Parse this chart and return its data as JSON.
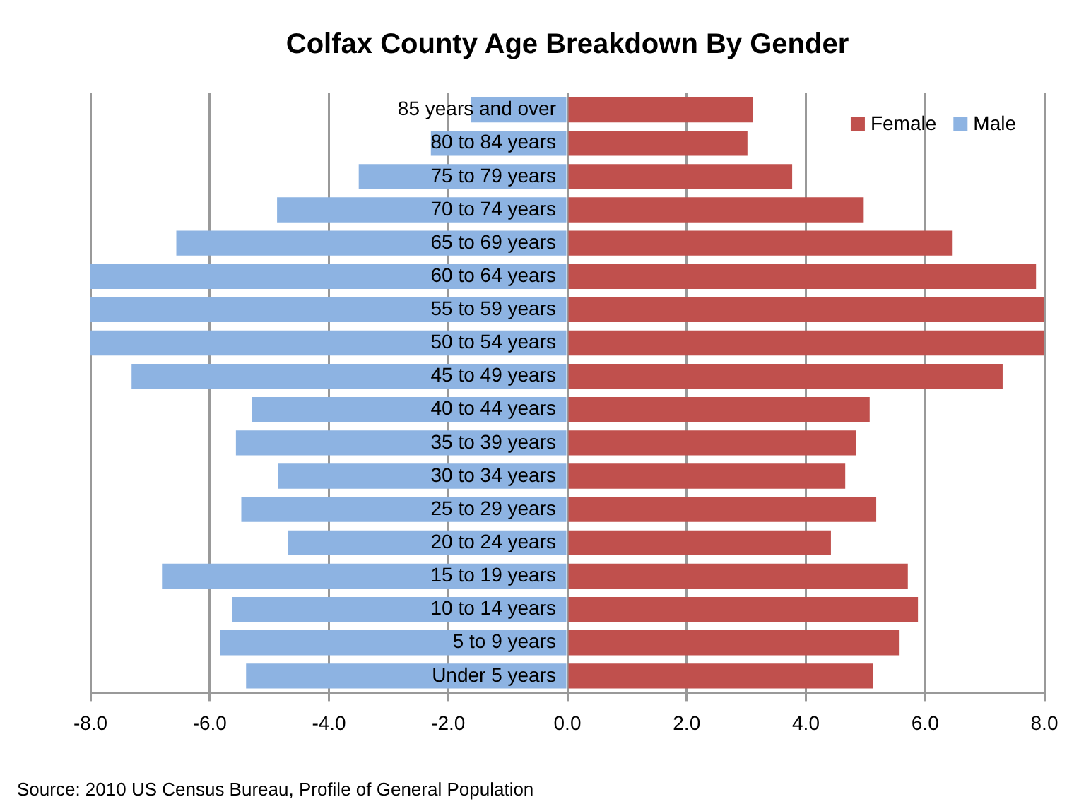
{
  "chart_data": {
    "type": "bar",
    "orientation": "horizontal",
    "stacked": true,
    "title": "Colfax County Age Breakdown By Gender",
    "categories": [
      "85 years and over",
      "80 to 84 years",
      "75 to 79 years",
      "70 to 74 years",
      "65 to 69 years",
      "60 to 64 years",
      "55 to 59 years",
      "50 to 54 years",
      "45 to 49 years",
      "40 to 44 years",
      "35 to 39 years",
      "30 to 34 years",
      "25 to 29 years",
      "20 to 24 years",
      "15 to 19 years",
      "10 to 14 years",
      "5 to 9 years",
      "Under 5 years"
    ],
    "series": [
      {
        "name": "Female",
        "color": "#c0504d",
        "values": [
          3.11,
          3.02,
          3.77,
          4.97,
          6.45,
          7.86,
          8.0,
          8.0,
          7.3,
          5.07,
          4.84,
          4.66,
          5.18,
          4.42,
          5.71,
          5.88,
          5.56,
          5.13
        ]
      },
      {
        "name": "Male",
        "color": "#8db3e2",
        "values": [
          -1.62,
          -2.29,
          -3.5,
          -4.87,
          -6.56,
          -8.0,
          -8.0,
          -8.0,
          -7.31,
          -5.29,
          -5.56,
          -4.85,
          -5.47,
          -4.69,
          -6.8,
          -5.62,
          -5.83,
          -5.39
        ]
      }
    ],
    "xlim": [
      -8,
      8
    ],
    "xticks": [
      {
        "value": -8,
        "label": "-8.0"
      },
      {
        "value": -6,
        "label": "-6.0"
      },
      {
        "value": -4,
        "label": "-4.0"
      },
      {
        "value": -2,
        "label": "-2.0"
      },
      {
        "value": 0,
        "label": "0.0"
      },
      {
        "value": 2,
        "label": "2.0"
      },
      {
        "value": 4,
        "label": "4.0"
      },
      {
        "value": 6,
        "label": "6.0"
      },
      {
        "value": 8,
        "label": "8.0"
      }
    ],
    "grid": "x",
    "legend": "top right",
    "annotations": [
      "Source: 2010 US Census Bureau, Profile of General Population"
    ]
  }
}
